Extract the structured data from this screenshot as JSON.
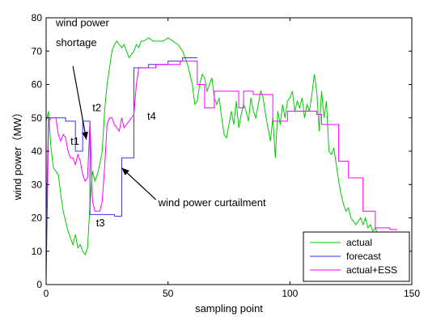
{
  "chart_data": {
    "type": "line",
    "title": "",
    "xlabel": "sampling point",
    "ylabel": "wind power（MW）",
    "xlim": [
      0,
      150
    ],
    "ylim": [
      0,
      80
    ],
    "x_ticks": [
      0,
      50,
      100,
      150
    ],
    "y_ticks": [
      0,
      10,
      20,
      30,
      40,
      50,
      60,
      70,
      80
    ],
    "grid": false,
    "legend_position": "bottom-right",
    "series": [
      {
        "name": "actual",
        "color": "#00cc00",
        "points": [
          [
            0,
            49
          ],
          [
            1,
            52
          ],
          [
            2,
            41
          ],
          [
            3,
            35
          ],
          [
            5,
            33
          ],
          [
            6,
            27
          ],
          [
            7,
            22
          ],
          [
            8,
            19
          ],
          [
            9,
            16
          ],
          [
            10,
            14
          ],
          [
            11,
            12
          ],
          [
            12,
            15
          ],
          [
            13,
            11
          ],
          [
            14,
            12
          ],
          [
            15,
            10
          ],
          [
            16,
            9
          ],
          [
            17,
            11
          ],
          [
            18,
            24
          ],
          [
            19,
            34
          ],
          [
            20,
            31
          ],
          [
            21,
            33
          ],
          [
            22,
            36
          ],
          [
            23,
            40
          ],
          [
            24,
            52
          ],
          [
            25,
            60
          ],
          [
            26,
            65
          ],
          [
            27,
            70
          ],
          [
            28,
            72
          ],
          [
            29,
            73
          ],
          [
            30,
            72
          ],
          [
            31,
            71
          ],
          [
            32,
            72
          ],
          [
            33,
            70
          ],
          [
            34,
            68
          ],
          [
            35,
            69
          ],
          [
            36,
            70
          ],
          [
            37,
            72
          ],
          [
            38,
            71
          ],
          [
            39,
            73
          ],
          [
            40,
            73
          ],
          [
            42,
            74
          ],
          [
            44,
            73
          ],
          [
            46,
            73
          ],
          [
            48,
            73
          ],
          [
            50,
            74
          ],
          [
            52,
            73
          ],
          [
            54,
            72
          ],
          [
            56,
            70
          ],
          [
            58,
            66
          ],
          [
            60,
            60
          ],
          [
            61,
            54
          ],
          [
            62,
            55
          ],
          [
            63,
            60
          ],
          [
            64,
            63
          ],
          [
            65,
            62
          ],
          [
            66,
            58
          ],
          [
            67,
            60
          ],
          [
            68,
            62
          ],
          [
            69,
            56
          ],
          [
            70,
            54
          ],
          [
            71,
            56
          ],
          [
            72,
            50
          ],
          [
            73,
            45
          ],
          [
            74,
            44
          ],
          [
            75,
            48
          ],
          [
            76,
            52
          ],
          [
            77,
            48
          ],
          [
            78,
            55
          ],
          [
            79,
            47
          ],
          [
            80,
            51
          ],
          [
            81,
            54
          ],
          [
            82,
            52
          ],
          [
            83,
            49
          ],
          [
            84,
            56
          ],
          [
            85,
            52
          ],
          [
            86,
            50
          ],
          [
            87,
            54
          ],
          [
            88,
            58
          ],
          [
            89,
            56
          ],
          [
            90,
            51
          ],
          [
            91,
            47
          ],
          [
            92,
            43
          ],
          [
            93,
            50
          ],
          [
            94,
            38
          ],
          [
            95,
            52
          ],
          [
            96,
            48
          ],
          [
            97,
            54
          ],
          [
            98,
            50
          ],
          [
            99,
            55
          ],
          [
            100,
            56
          ],
          [
            101,
            58
          ],
          [
            102,
            52
          ],
          [
            103,
            55
          ],
          [
            104,
            53
          ],
          [
            105,
            56
          ],
          [
            106,
            50
          ],
          [
            107,
            54
          ],
          [
            108,
            52
          ],
          [
            109,
            57
          ],
          [
            110,
            63
          ],
          [
            111,
            58
          ],
          [
            112,
            46
          ],
          [
            113,
            58
          ],
          [
            114,
            50
          ],
          [
            115,
            55
          ],
          [
            116,
            40
          ],
          [
            117,
            39
          ],
          [
            118,
            41
          ],
          [
            119,
            36
          ],
          [
            120,
            31
          ],
          [
            121,
            27
          ],
          [
            122,
            24
          ],
          [
            123,
            22
          ],
          [
            124,
            23
          ],
          [
            125,
            20
          ],
          [
            126,
            19
          ],
          [
            127,
            18
          ],
          [
            128,
            19
          ],
          [
            129,
            20
          ],
          [
            130,
            18
          ],
          [
            131,
            20
          ],
          [
            132,
            17
          ],
          [
            133,
            18
          ],
          [
            134,
            16
          ],
          [
            135,
            17
          ],
          [
            136,
            15
          ],
          [
            137,
            13
          ],
          [
            138,
            12
          ]
        ]
      },
      {
        "name": "forecast",
        "color": "#3333ff",
        "points": [
          [
            0,
            1
          ],
          [
            1,
            49
          ],
          [
            2,
            50
          ],
          [
            8,
            50
          ],
          [
            8,
            49
          ],
          [
            12,
            49
          ],
          [
            12,
            40
          ],
          [
            15,
            40
          ],
          [
            15,
            49
          ],
          [
            18,
            49
          ],
          [
            18,
            21
          ],
          [
            28,
            21
          ],
          [
            28,
            20.5
          ],
          [
            31,
            20.5
          ],
          [
            31,
            38
          ],
          [
            36,
            38
          ],
          [
            36,
            65
          ],
          [
            42,
            65
          ],
          [
            42,
            66
          ],
          [
            50,
            66
          ],
          [
            50,
            67
          ],
          [
            56,
            67
          ],
          [
            56,
            68
          ],
          [
            62,
            68
          ]
        ]
      },
      {
        "name": "actual+ESS",
        "color": "#ff00ff",
        "points": [
          [
            0,
            18
          ],
          [
            1,
            50
          ],
          [
            4,
            50
          ],
          [
            5,
            45
          ],
          [
            6,
            43
          ],
          [
            7,
            45
          ],
          [
            8,
            44
          ],
          [
            9,
            40
          ],
          [
            10,
            38
          ],
          [
            11,
            38
          ],
          [
            12,
            36
          ],
          [
            13,
            39
          ],
          [
            14,
            37
          ],
          [
            15,
            33
          ],
          [
            16,
            31
          ],
          [
            17,
            32
          ],
          [
            18,
            49
          ],
          [
            19,
            25
          ],
          [
            20,
            22
          ],
          [
            22,
            22
          ],
          [
            23,
            25
          ],
          [
            24,
            35
          ],
          [
            25,
            48
          ],
          [
            26,
            50
          ],
          [
            27,
            50
          ],
          [
            28,
            48
          ],
          [
            29,
            47
          ],
          [
            30,
            46
          ],
          [
            31,
            50
          ],
          [
            32,
            47
          ],
          [
            33,
            48
          ],
          [
            34,
            49
          ],
          [
            35,
            50
          ],
          [
            36,
            51
          ],
          [
            37,
            60
          ],
          [
            38,
            65
          ],
          [
            45,
            65
          ],
          [
            45,
            66
          ],
          [
            55,
            66
          ],
          [
            55,
            67
          ],
          [
            62,
            67
          ],
          [
            62,
            60
          ],
          [
            65,
            60
          ],
          [
            65,
            53
          ],
          [
            69,
            53
          ],
          [
            69,
            58
          ],
          [
            79,
            58
          ],
          [
            79,
            53
          ],
          [
            81,
            53
          ],
          [
            81,
            58
          ],
          [
            85,
            58
          ],
          [
            85,
            57
          ],
          [
            93,
            57
          ],
          [
            93,
            49
          ],
          [
            99,
            49
          ],
          [
            99,
            52
          ],
          [
            111,
            52
          ],
          [
            111,
            51
          ],
          [
            113,
            51
          ],
          [
            113,
            48
          ],
          [
            120,
            48
          ],
          [
            120,
            37
          ],
          [
            124,
            37
          ],
          [
            124,
            32
          ],
          [
            130,
            32
          ],
          [
            130,
            22
          ],
          [
            135,
            22
          ],
          [
            135,
            17
          ],
          [
            141,
            17
          ],
          [
            141,
            16.5
          ],
          [
            144,
            16.5
          ]
        ]
      }
    ],
    "annotations": [
      {
        "text": "wind power",
        "x": 4,
        "y": 77.5
      },
      {
        "text": "shortage",
        "x": 4,
        "y": 71.5
      },
      {
        "text": "t1",
        "x": 10,
        "y": 42
      },
      {
        "text": "t2",
        "x": 19,
        "y": 52
      },
      {
        "text": "t3",
        "x": 20.5,
        "y": 17.5
      },
      {
        "text": "t4",
        "x": 41.5,
        "y": 49.5
      },
      {
        "text": "wind power curtailment",
        "x": 46,
        "y": 23.5
      }
    ],
    "arrows": [
      {
        "from": [
          11,
          65.5
        ],
        "to": [
          16.5,
          43.5
        ]
      },
      {
        "from": [
          45,
          25.5
        ],
        "to": [
          31,
          35
        ]
      }
    ]
  }
}
